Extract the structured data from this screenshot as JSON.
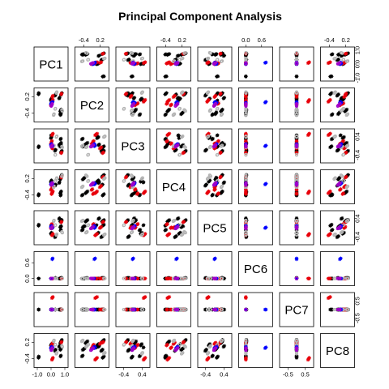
{
  "chart_data": {
    "type": "scatter-matrix",
    "title": "Principal Component Analysis",
    "variables": [
      "PC1",
      "PC2",
      "PC3",
      "PC4",
      "PC5",
      "PC6",
      "PC7",
      "PC8"
    ],
    "axis_ticks": {
      "PC1": {
        "labels": [
          "-1.0",
          "0.0",
          "1.0"
        ],
        "range": [
          -1.0,
          1.0
        ]
      },
      "PC2": {
        "labels": [
          "-0.4",
          "0.2"
        ],
        "range": [
          -0.6,
          0.4
        ]
      },
      "PC3": {
        "labels": [
          "-0.4",
          "0.4"
        ],
        "range": [
          -0.6,
          0.6
        ]
      },
      "PC4": {
        "labels": [
          "-0.4",
          "0.2"
        ],
        "range": [
          -0.6,
          0.4
        ]
      },
      "PC5": {
        "labels": [
          "-0.4",
          "0.4"
        ],
        "range": [
          -0.6,
          0.6
        ]
      },
      "PC6": {
        "labels": [
          "0.0",
          "0.6"
        ],
        "range": [
          -0.15,
          0.9
        ]
      },
      "PC7": {
        "labels": [
          "-0.5",
          "0.5"
        ],
        "range": [
          -0.8,
          0.8
        ]
      },
      "PC8": {
        "labels": [
          "-0.4",
          "0.2"
        ],
        "range": [
          -0.6,
          0.4
        ]
      }
    },
    "groups": [
      {
        "color": "#000000",
        "marker": "asterisk"
      },
      {
        "color": "#e8000b",
        "marker": "asterisk"
      },
      {
        "color": "#b3b3b3",
        "marker": "circle"
      },
      {
        "color": "#0000ff",
        "marker": "asterisk"
      },
      {
        "color": "#a000c8",
        "marker": "circle"
      }
    ],
    "points": [
      [
        0.7,
        -0.4,
        0.0,
        0.2,
        0.05,
        0.0,
        0.0,
        -0.05,
        0
      ],
      [
        0.72,
        -0.38,
        0.02,
        0.22,
        0.08,
        0.0,
        0.0,
        -0.03,
        0
      ],
      [
        0.68,
        -0.42,
        -0.02,
        0.18,
        0.03,
        0.0,
        0.0,
        -0.07,
        0
      ],
      [
        0.74,
        -0.36,
        0.04,
        0.24,
        0.06,
        0.0,
        0.0,
        -0.02,
        0
      ],
      [
        0.66,
        -0.44,
        -0.04,
        0.16,
        0.02,
        0.0,
        0.0,
        -0.08,
        0
      ],
      [
        0.7,
        -0.3,
        0.1,
        -0.3,
        0.3,
        0.02,
        0.0,
        0.2,
        0
      ],
      [
        0.72,
        -0.28,
        0.12,
        -0.28,
        0.32,
        0.02,
        0.0,
        0.22,
        0
      ],
      [
        0.68,
        -0.32,
        0.08,
        -0.32,
        0.28,
        0.01,
        0.0,
        0.18,
        0
      ],
      [
        0.74,
        -0.26,
        0.14,
        -0.26,
        0.34,
        0.02,
        0.0,
        0.24,
        0
      ],
      [
        0.66,
        -0.34,
        0.06,
        -0.34,
        0.26,
        0.01,
        0.0,
        0.16,
        0
      ],
      [
        0.7,
        -0.45,
        0.3,
        -0.4,
        -0.1,
        0.0,
        0.0,
        -0.3,
        0
      ],
      [
        0.72,
        -0.43,
        0.32,
        -0.38,
        -0.08,
        0.0,
        0.0,
        -0.28,
        0
      ],
      [
        0.68,
        -0.47,
        0.28,
        -0.42,
        -0.12,
        0.0,
        0.0,
        -0.32,
        0
      ],
      [
        -0.9,
        0.3,
        -0.05,
        -0.4,
        0.1,
        0.0,
        0.0,
        -0.35,
        0
      ],
      [
        -0.88,
        0.32,
        -0.03,
        -0.38,
        0.12,
        0.0,
        0.0,
        -0.33,
        0
      ],
      [
        -0.92,
        0.28,
        -0.07,
        -0.42,
        0.08,
        0.0,
        0.0,
        -0.37,
        0
      ],
      [
        -0.9,
        0.34,
        -0.01,
        -0.36,
        0.14,
        0.0,
        0.0,
        -0.31,
        0
      ],
      [
        0.75,
        0.3,
        -0.25,
        0.3,
        0.3,
        0.02,
        0.0,
        0.25,
        0
      ],
      [
        0.77,
        0.32,
        -0.23,
        0.32,
        0.32,
        0.02,
        0.0,
        0.27,
        0
      ],
      [
        0.73,
        0.28,
        -0.27,
        0.28,
        0.28,
        0.01,
        0.0,
        0.23,
        0
      ],
      [
        0.79,
        0.34,
        -0.21,
        0.34,
        0.34,
        0.02,
        0.0,
        0.29,
        0
      ],
      [
        0.71,
        0.26,
        -0.29,
        0.26,
        0.26,
        0.01,
        0.0,
        0.21,
        0
      ],
      [
        0.3,
        0.25,
        -0.2,
        -0.05,
        -0.4,
        0.02,
        0.0,
        -0.1,
        0
      ],
      [
        0.32,
        0.27,
        -0.18,
        -0.03,
        -0.38,
        0.02,
        0.0,
        -0.08,
        0
      ],
      [
        0.28,
        0.23,
        -0.22,
        -0.07,
        -0.42,
        0.01,
        0.0,
        -0.12,
        0
      ],
      [
        0.34,
        0.29,
        -0.16,
        -0.01,
        -0.36,
        0.02,
        0.0,
        -0.06,
        0
      ],
      [
        0.0,
        0.1,
        0.35,
        0.1,
        -0.25,
        0.0,
        0.0,
        0.1,
        0
      ],
      [
        0.02,
        0.12,
        0.37,
        0.12,
        -0.23,
        0.0,
        0.0,
        0.12,
        0
      ],
      [
        -0.02,
        0.08,
        0.33,
        0.08,
        -0.27,
        0.0,
        0.0,
        0.08,
        0
      ],
      [
        0.04,
        0.14,
        0.39,
        0.14,
        -0.21,
        0.0,
        0.0,
        0.14,
        0
      ],
      [
        0.6,
        0.15,
        0.05,
        0.05,
        0.4,
        0.0,
        0.0,
        0.05,
        0
      ],
      [
        0.62,
        0.17,
        0.07,
        0.07,
        0.42,
        0.0,
        0.0,
        0.07,
        0
      ],
      [
        0.58,
        0.13,
        0.03,
        0.03,
        0.38,
        0.0,
        0.0,
        0.03,
        0
      ],
      [
        0.0,
        0.05,
        0.45,
        0.05,
        0.1,
        0.0,
        0.0,
        0.0,
        0
      ],
      [
        0.02,
        0.07,
        0.47,
        0.07,
        0.12,
        0.0,
        0.0,
        0.02,
        0
      ],
      [
        0.1,
        0.2,
        -0.1,
        -0.1,
        0.0,
        0.0,
        0.0,
        0.15,
        1
      ],
      [
        0.12,
        0.22,
        -0.08,
        -0.08,
        0.02,
        0.0,
        0.0,
        0.17,
        1
      ],
      [
        0.08,
        0.18,
        -0.12,
        -0.12,
        -0.02,
        0.0,
        0.0,
        0.13,
        1
      ],
      [
        0.14,
        0.24,
        -0.06,
        -0.06,
        0.04,
        0.0,
        0.0,
        0.19,
        1
      ],
      [
        0.1,
        0.05,
        0.5,
        -0.3,
        -0.3,
        0.0,
        0.7,
        -0.4,
        1
      ],
      [
        0.12,
        0.07,
        0.52,
        -0.28,
        -0.28,
        0.0,
        0.72,
        -0.38,
        1
      ],
      [
        0.08,
        0.03,
        0.48,
        -0.32,
        -0.32,
        0.0,
        0.68,
        -0.42,
        1
      ],
      [
        0.14,
        0.09,
        0.54,
        -0.26,
        -0.26,
        0.0,
        0.74,
        -0.36,
        1
      ],
      [
        0.06,
        0.01,
        0.46,
        -0.34,
        -0.34,
        0.0,
        0.66,
        -0.44,
        1
      ],
      [
        0.75,
        0.3,
        -0.3,
        0.25,
        0.25,
        0.0,
        0.0,
        0.2,
        1
      ],
      [
        0.77,
        0.32,
        -0.28,
        0.27,
        0.27,
        0.0,
        0.0,
        0.22,
        1
      ],
      [
        0.73,
        0.28,
        -0.32,
        0.23,
        0.23,
        0.0,
        0.0,
        0.18,
        1
      ],
      [
        0.05,
        -0.05,
        0.2,
        -0.35,
        0.15,
        0.0,
        0.0,
        0.1,
        1
      ],
      [
        0.07,
        -0.03,
        0.22,
        -0.33,
        0.17,
        0.0,
        0.0,
        0.12,
        1
      ],
      [
        0.03,
        -0.07,
        0.18,
        -0.37,
        0.13,
        0.0,
        0.0,
        0.08,
        1
      ],
      [
        0.0,
        -0.1,
        0.1,
        -0.2,
        0.0,
        0.0,
        0.0,
        0.0,
        1
      ],
      [
        0.02,
        -0.08,
        0.12,
        -0.18,
        0.02,
        0.0,
        0.0,
        0.02,
        1
      ],
      [
        -0.02,
        -0.12,
        0.08,
        -0.22,
        -0.02,
        0.0,
        0.0,
        -0.02,
        1
      ],
      [
        0.8,
        -0.3,
        -0.05,
        0.3,
        -0.2,
        0.0,
        0.0,
        0.05,
        2
      ],
      [
        0.78,
        -0.28,
        -0.03,
        0.28,
        -0.18,
        0.0,
        0.0,
        0.07,
        2
      ],
      [
        0.82,
        -0.32,
        -0.07,
        0.32,
        -0.22,
        0.0,
        0.0,
        0.03,
        2
      ],
      [
        0.2,
        -0.45,
        0.0,
        -0.1,
        0.3,
        0.0,
        0.0,
        0.25,
        2
      ],
      [
        0.22,
        -0.43,
        0.02,
        -0.08,
        0.32,
        0.0,
        0.0,
        0.27,
        2
      ],
      [
        0.18,
        -0.47,
        -0.02,
        -0.12,
        0.28,
        0.0,
        0.0,
        0.23,
        2
      ],
      [
        0.4,
        0.35,
        0.4,
        0.2,
        -0.3,
        0.0,
        0.0,
        -0.2,
        2
      ],
      [
        0.42,
        0.37,
        0.42,
        0.22,
        -0.28,
        0.0,
        0.0,
        -0.18,
        2
      ],
      [
        0.38,
        0.33,
        0.38,
        0.18,
        -0.32,
        0.0,
        0.0,
        -0.22,
        2
      ],
      [
        0.3,
        -0.25,
        -0.4,
        0.1,
        0.1,
        0.0,
        0.0,
        0.1,
        2
      ],
      [
        0.32,
        -0.23,
        -0.38,
        0.12,
        0.12,
        0.0,
        0.0,
        0.12,
        2
      ],
      [
        0.1,
        0.0,
        0.0,
        0.0,
        0.0,
        0.75,
        0.0,
        0.0,
        3
      ],
      [
        0.12,
        0.02,
        0.02,
        0.02,
        0.02,
        0.77,
        0.0,
        0.02,
        3
      ],
      [
        0.08,
        -0.02,
        -0.02,
        -0.02,
        -0.02,
        0.73,
        0.0,
        -0.02,
        3
      ],
      [
        0.0,
        -0.05,
        0.05,
        0.0,
        0.05,
        0.0,
        0.0,
        0.0,
        3
      ],
      [
        0.02,
        -0.03,
        0.07,
        0.02,
        0.07,
        0.0,
        0.0,
        0.02,
        3
      ],
      [
        -0.02,
        -0.07,
        0.03,
        -0.02,
        0.03,
        0.0,
        0.0,
        -0.02,
        3
      ],
      [
        0.04,
        -0.01,
        0.09,
        0.04,
        0.09,
        0.0,
        0.0,
        0.04,
        3
      ],
      [
        0.05,
        -0.1,
        0.0,
        0.0,
        0.0,
        0.0,
        0.0,
        -0.05,
        4
      ],
      [
        0.07,
        -0.08,
        0.02,
        0.02,
        0.02,
        0.0,
        0.0,
        -0.03,
        4
      ],
      [
        0.03,
        -0.12,
        -0.02,
        -0.02,
        -0.02,
        0.0,
        0.0,
        -0.07,
        4
      ],
      [
        0.09,
        -0.06,
        0.04,
        0.04,
        0.04,
        0.0,
        0.0,
        -0.01,
        4
      ],
      [
        0.01,
        -0.14,
        -0.04,
        -0.04,
        -0.04,
        0.0,
        0.0,
        -0.09,
        4
      ]
    ]
  }
}
